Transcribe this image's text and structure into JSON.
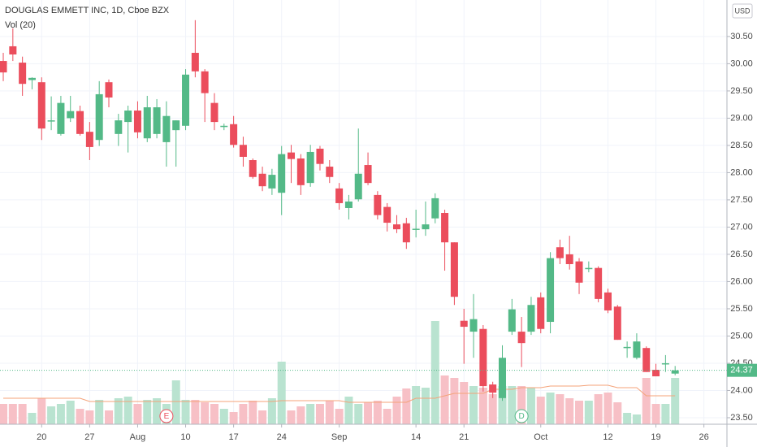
{
  "chart_data": {
    "type": "candlestick",
    "title": "DOUGLAS EMMETT INC, 1D, Cboe BZX",
    "subtitle": "Vol (20)",
    "currency": "USD",
    "up_color": "#53b987",
    "down_color": "#eb4d5c",
    "volume_up_color": "#b9e3d0",
    "volume_down_color": "#f7c0c6",
    "volume_ma_color": "#f4a37a",
    "grid": true,
    "open": [
      30.05,
      30.32,
      30.02,
      29.7,
      29.66,
      28.94,
      28.71,
      29.0,
      29.13,
      28.75,
      28.6,
      29.66,
      28.71,
      28.93,
      29.14,
      28.63,
      28.71,
      28.56,
      28.78,
      28.86,
      30.2,
      29.86,
      29.28,
      28.84,
      28.89,
      28.51,
      28.23,
      27.98,
      27.71,
      27.63,
      28.37,
      28.26,
      27.81,
      28.44,
      28.11,
      27.71,
      27.35,
      27.51,
      28.14,
      27.59,
      27.37,
      27.05,
      27.07,
      26.96,
      26.96,
      27.16,
      27.26,
      26.72,
      25.28,
      25.08,
      25.13,
      24.11,
      23.86,
      25.08,
      25.08,
      25.08,
      25.71,
      25.26,
      26.63,
      26.5,
      26.37,
      26.24,
      26.25,
      25.8,
      25.54,
      24.78,
      24.6,
      24.78,
      24.38,
      24.49,
      24.31
    ],
    "high": [
      30.2,
      30.65,
      30.13,
      29.75,
      29.75,
      29.4,
      29.41,
      29.41,
      29.23,
      28.93,
      29.68,
      29.71,
      29.08,
      29.23,
      29.31,
      29.41,
      29.35,
      29.31,
      28.96,
      29.9,
      30.8,
      29.9,
      29.46,
      28.9,
      29.04,
      28.66,
      28.26,
      28.11,
      28.07,
      28.49,
      28.51,
      28.34,
      28.51,
      28.49,
      28.23,
      27.81,
      27.59,
      28.81,
      28.37,
      27.66,
      27.44,
      27.22,
      27.17,
      27.32,
      27.47,
      27.62,
      27.32,
      26.72,
      25.5,
      25.77,
      25.2,
      24.16,
      24.83,
      25.68,
      25.35,
      25.72,
      25.8,
      26.54,
      26.77,
      26.84,
      26.43,
      26.37,
      26.28,
      25.87,
      25.57,
      24.9,
      25.05,
      24.81,
      24.49,
      24.65,
      24.45
    ],
    "low": [
      29.68,
      30.05,
      29.41,
      29.53,
      28.6,
      28.78,
      28.68,
      28.93,
      28.68,
      28.23,
      28.49,
      29.2,
      28.49,
      28.37,
      28.63,
      28.56,
      28.63,
      28.11,
      28.11,
      28.78,
      29.75,
      28.93,
      28.78,
      28.78,
      28.46,
      28.11,
      27.89,
      27.66,
      27.59,
      27.22,
      27.81,
      27.59,
      27.74,
      28.04,
      27.81,
      27.32,
      27.14,
      27.47,
      27.77,
      27.14,
      26.92,
      26.89,
      26.6,
      26.81,
      26.84,
      27.07,
      26.2,
      25.57,
      24.49,
      24.6,
      23.98,
      23.86,
      23.81,
      25.02,
      24.43,
      25.02,
      25.05,
      25.05,
      26.32,
      26.22,
      25.77,
      26.17,
      25.62,
      25.42,
      24.93,
      24.6,
      24.57,
      24.34,
      24.26,
      24.34,
      24.28
    ],
    "close": [
      29.84,
      30.17,
      29.63,
      29.74,
      28.81,
      28.96,
      29.28,
      29.13,
      28.71,
      28.47,
      29.44,
      29.38,
      28.96,
      29.14,
      28.74,
      29.2,
      29.2,
      29.04,
      28.96,
      29.8,
      29.86,
      29.46,
      28.93,
      28.86,
      28.51,
      28.29,
      27.92,
      27.75,
      27.96,
      28.34,
      28.25,
      27.77,
      28.38,
      28.16,
      27.92,
      27.44,
      27.47,
      27.98,
      27.81,
      27.22,
      27.08,
      26.96,
      26.72,
      26.97,
      27.05,
      27.53,
      26.72,
      25.72,
      25.17,
      25.31,
      24.08,
      23.96,
      24.6,
      25.49,
      24.87,
      25.57,
      25.13,
      26.43,
      26.43,
      26.32,
      25.98,
      26.25,
      25.68,
      25.47,
      24.93,
      24.8,
      24.9,
      24.34,
      24.26,
      24.5,
      24.37
    ],
    "volume": [
      25,
      25,
      25,
      14,
      32,
      22,
      25,
      29,
      19,
      17,
      30,
      17,
      32,
      34,
      25,
      30,
      32,
      25,
      54,
      30,
      30,
      27,
      25,
      19,
      15,
      25,
      29,
      17,
      32,
      77,
      17,
      22,
      25,
      25,
      29,
      19,
      34,
      25,
      27,
      29,
      19,
      34,
      44,
      47,
      45,
      127,
      60,
      57,
      52,
      47,
      45,
      37,
      47,
      47,
      47,
      45,
      34,
      39,
      37,
      32,
      29,
      29,
      37,
      39,
      27,
      14,
      12,
      57,
      25,
      25,
      57
    ],
    "volume_ma": [
      32,
      32,
      32,
      32,
      32,
      32,
      32,
      32,
      32,
      28,
      28,
      28,
      28,
      28,
      28,
      28,
      28,
      28,
      28,
      28,
      28,
      28,
      28,
      28,
      28,
      28,
      28,
      28,
      28,
      29,
      29,
      29,
      29,
      29,
      29,
      29,
      27,
      27,
      27,
      27,
      27,
      27,
      27,
      32,
      32,
      32,
      35,
      38,
      38,
      38,
      38,
      43,
      43,
      43,
      45,
      45,
      45,
      47,
      47,
      47,
      47,
      48,
      48,
      48,
      45,
      45,
      45,
      35,
      35,
      35,
      35
    ],
    "events": [
      {
        "label": "E",
        "index": 17
      },
      {
        "label": "D",
        "index": 54
      }
    ],
    "xlim": [
      -0.34,
      75.4
    ],
    "ylim": [
      23.38,
      31.17
    ],
    "xticks": [
      {
        "value": 4,
        "label": "20"
      },
      {
        "value": 9,
        "label": "27"
      },
      {
        "value": 14,
        "label": "Aug"
      },
      {
        "value": 19,
        "label": "10"
      },
      {
        "value": 24,
        "label": "17"
      },
      {
        "value": 29,
        "label": "24"
      },
      {
        "value": 35,
        "label": "Sep"
      },
      {
        "value": 43,
        "label": "14"
      },
      {
        "value": 48,
        "label": "21"
      },
      {
        "value": 56,
        "label": "Oct"
      },
      {
        "value": 63,
        "label": "12"
      },
      {
        "value": 68,
        "label": "19"
      },
      {
        "value": 73,
        "label": "26"
      }
    ],
    "yticks": [
      {
        "value": 23.5,
        "label": "23.50"
      },
      {
        "value": 24,
        "label": "24.00"
      },
      {
        "value": 24.5,
        "label": "24.50"
      },
      {
        "value": 25,
        "label": "25.00"
      },
      {
        "value": 25.5,
        "label": "25.50"
      },
      {
        "value": 26,
        "label": "26.00"
      },
      {
        "value": 26.5,
        "label": "26.50"
      },
      {
        "value": 27,
        "label": "27.00"
      },
      {
        "value": 27.5,
        "label": "27.50"
      },
      {
        "value": 28,
        "label": "28.00"
      },
      {
        "value": 28.5,
        "label": "28.50"
      },
      {
        "value": 29,
        "label": "29.00"
      },
      {
        "value": 29.5,
        "label": "29.50"
      },
      {
        "value": 30,
        "label": "30.00"
      },
      {
        "value": 30.5,
        "label": "30.50"
      }
    ]
  }
}
